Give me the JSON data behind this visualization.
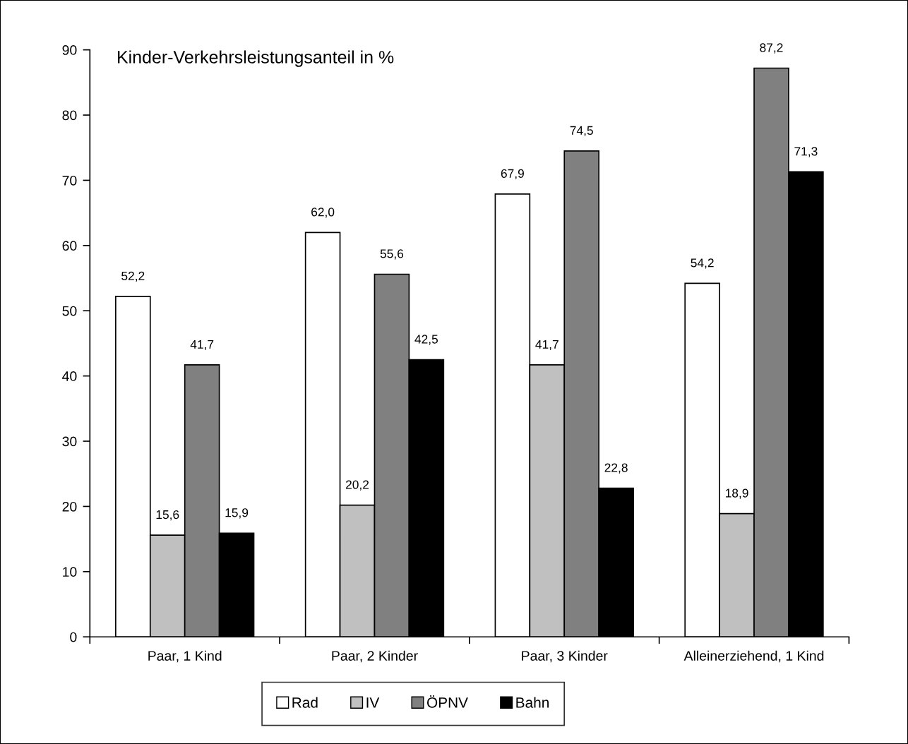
{
  "chart_data": {
    "type": "bar",
    "title": "Kinder-Verkehrsleistungsanteil in %",
    "categories": [
      "Paar, 1 Kind",
      "Paar, 2 Kinder",
      "Paar, 3 Kinder",
      "Alleinerziehend, 1 Kind"
    ],
    "series": [
      {
        "name": "Rad",
        "color": "#ffffff",
        "values": [
          52.2,
          62.0,
          67.9,
          54.2
        ],
        "value_labels": [
          "52,2",
          "62,0",
          "67,9",
          "54,2"
        ]
      },
      {
        "name": "IV",
        "color": "#c0c0c0",
        "values": [
          15.6,
          20.2,
          41.7,
          18.9
        ],
        "value_labels": [
          "15,6",
          "20,2",
          "41,7",
          "18,9"
        ]
      },
      {
        "name": "ÖPNV",
        "color": "#808080",
        "values": [
          41.7,
          55.6,
          74.5,
          87.2
        ],
        "value_labels": [
          "41,7",
          "55,6",
          "74,5",
          "87,2"
        ]
      },
      {
        "name": "Bahn",
        "color": "#000000",
        "values": [
          15.9,
          42.5,
          22.8,
          71.3
        ],
        "value_labels": [
          "15,9",
          "42,5",
          "22,8",
          "71,3"
        ]
      }
    ],
    "ylim": [
      0,
      90
    ],
    "yticks": [
      0,
      10,
      20,
      30,
      40,
      50,
      60,
      70,
      80,
      90
    ],
    "grid": false,
    "legend": "bottom"
  }
}
